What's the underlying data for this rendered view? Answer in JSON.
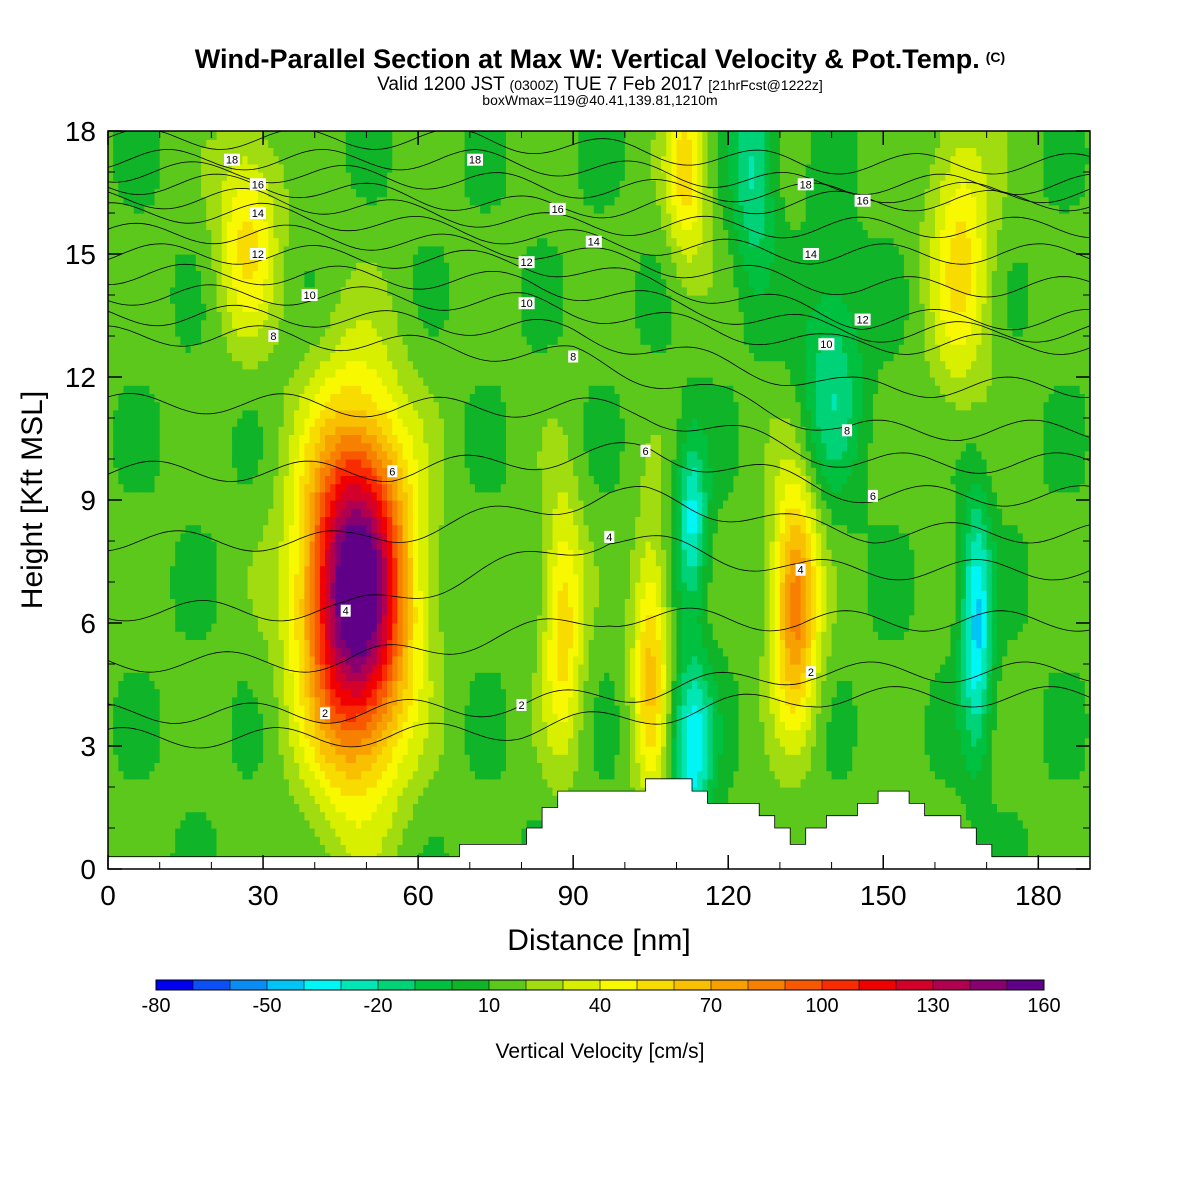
{
  "header": {
    "title": "Wind-Parallel Section at Max W: Vertical Velocity & Pot.Temp.",
    "title_mark": "(C)",
    "valid_prefix": "Valid 1200 JST",
    "valid_utc": "(0300Z)",
    "valid_date": "TUE 7 Feb 2017",
    "forecast": "[21hrFcst@1222z]",
    "subtitle": "boxWmax=119@40.41,139.81,1210m"
  },
  "chart_data": {
    "type": "heatmap",
    "title": "Wind-Parallel Section at Max W: Vertical Velocity & Pot.Temp.",
    "xlabel": "Distance [nm]",
    "ylabel": "Height [Kft MSL]",
    "xlim": [
      0,
      190
    ],
    "ylim": [
      0,
      18
    ],
    "x_ticks": [
      "0",
      "30",
      "60",
      "90",
      "120",
      "150",
      "180"
    ],
    "y_ticks": [
      "0",
      "3",
      "6",
      "9",
      "12",
      "15",
      "18"
    ],
    "colorbar": {
      "label": "Vertical Velocity [cm/s]",
      "tick_labels": [
        "-80",
        "-50",
        "-20",
        "10",
        "40",
        "70",
        "100",
        "130",
        "160"
      ],
      "levels": [
        -80,
        -70,
        -60,
        -50,
        -40,
        -30,
        -20,
        -10,
        0,
        10,
        20,
        30,
        40,
        50,
        60,
        70,
        80,
        90,
        100,
        110,
        120,
        130,
        140,
        150,
        160
      ],
      "colors": [
        "#0000f0",
        "#0a50f5",
        "#0a8cf5",
        "#00c4f5",
        "#00f5f5",
        "#00e6b4",
        "#00d278",
        "#00c040",
        "#10b428",
        "#5cc81c",
        "#a0dc10",
        "#d8f000",
        "#f8f800",
        "#f8dc00",
        "#f8c000",
        "#f8a000",
        "#f88000",
        "#f85800",
        "#f82c00",
        "#f00000",
        "#d4002c",
        "#b00050",
        "#880070",
        "#600088"
      ]
    },
    "velocity_features": [
      {
        "x": 48,
        "z": 6.8,
        "peak": 160,
        "note": "main updraft core"
      },
      {
        "x": 27,
        "z": 15.5,
        "peak": 40
      },
      {
        "x": 88,
        "z": 6,
        "peak": 45
      },
      {
        "x": 105,
        "z": 5,
        "peak": 50
      },
      {
        "x": 112,
        "z": 17,
        "peak": 45
      },
      {
        "x": 133,
        "z": 6.5,
        "peak": 75
      },
      {
        "x": 165,
        "z": 15,
        "peak": 40
      },
      {
        "x": 113,
        "z": 3,
        "peak": -50
      },
      {
        "x": 113,
        "z": 8.5,
        "peak": -45
      },
      {
        "x": 168,
        "z": 6,
        "peak": -55
      },
      {
        "x": 140,
        "z": 12,
        "peak": -30
      },
      {
        "x": 125,
        "z": 17,
        "peak": -35
      }
    ],
    "theta_contour_labels": [
      "2",
      "4",
      "6",
      "8",
      "10",
      "12",
      "14",
      "16",
      "18"
    ],
    "theta_label_positions": [
      {
        "text": "18",
        "x": 24,
        "z": 17.3
      },
      {
        "text": "18",
        "x": 71,
        "z": 17.3
      },
      {
        "text": "18",
        "x": 135,
        "z": 16.7
      },
      {
        "text": "16",
        "x": 29,
        "z": 16.7
      },
      {
        "text": "16",
        "x": 87,
        "z": 16.1
      },
      {
        "text": "16",
        "x": 146,
        "z": 16.3
      },
      {
        "text": "14",
        "x": 29,
        "z": 16.0
      },
      {
        "text": "14",
        "x": 94,
        "z": 15.3
      },
      {
        "text": "14",
        "x": 136,
        "z": 15.0
      },
      {
        "text": "12",
        "x": 29,
        "z": 15.0
      },
      {
        "text": "12",
        "x": 81,
        "z": 14.8
      },
      {
        "text": "12",
        "x": 146,
        "z": 13.4
      },
      {
        "text": "10",
        "x": 39,
        "z": 14.0
      },
      {
        "text": "10",
        "x": 81,
        "z": 13.8
      },
      {
        "text": "10",
        "x": 139,
        "z": 12.8
      },
      {
        "text": "8",
        "x": 32,
        "z": 13.0
      },
      {
        "text": "8",
        "x": 90,
        "z": 12.5
      },
      {
        "text": "8",
        "x": 143,
        "z": 10.7
      },
      {
        "text": "6",
        "x": 55,
        "z": 9.7
      },
      {
        "text": "6",
        "x": 104,
        "z": 10.2
      },
      {
        "text": "6",
        "x": 148,
        "z": 9.1
      },
      {
        "text": "4",
        "x": 46,
        "z": 6.3
      },
      {
        "text": "4",
        "x": 97,
        "z": 8.1
      },
      {
        "text": "4",
        "x": 134,
        "z": 7.3
      },
      {
        "text": "2",
        "x": 42,
        "z": 3.8
      },
      {
        "text": "2",
        "x": 80,
        "z": 4.0
      },
      {
        "text": "2",
        "x": 136,
        "z": 4.8
      }
    ],
    "terrain": [
      [
        0,
        0.3
      ],
      [
        68,
        0.3
      ],
      [
        68,
        0.6
      ],
      [
        81,
        0.6
      ],
      [
        81,
        1.0
      ],
      [
        84,
        1.0
      ],
      [
        84,
        1.5
      ],
      [
        87,
        1.5
      ],
      [
        87,
        1.9
      ],
      [
        104,
        1.9
      ],
      [
        104,
        2.2
      ],
      [
        113,
        2.2
      ],
      [
        113,
        1.9
      ],
      [
        116,
        1.9
      ],
      [
        116,
        1.6
      ],
      [
        126,
        1.6
      ],
      [
        126,
        1.3
      ],
      [
        129,
        1.3
      ],
      [
        129,
        1.0
      ],
      [
        132,
        1.0
      ],
      [
        132,
        0.6
      ],
      [
        135,
        0.6
      ],
      [
        135,
        1.0
      ],
      [
        139,
        1.0
      ],
      [
        139,
        1.3
      ],
      [
        145,
        1.3
      ],
      [
        145,
        1.6
      ],
      [
        149,
        1.6
      ],
      [
        149,
        1.9
      ],
      [
        155,
        1.9
      ],
      [
        155,
        1.6
      ],
      [
        158,
        1.6
      ],
      [
        158,
        1.3
      ],
      [
        165,
        1.3
      ],
      [
        165,
        1.0
      ],
      [
        168,
        1.0
      ],
      [
        168,
        0.6
      ],
      [
        171,
        0.6
      ],
      [
        171,
        0.3
      ],
      [
        190,
        0.3
      ]
    ]
  },
  "footer": {}
}
